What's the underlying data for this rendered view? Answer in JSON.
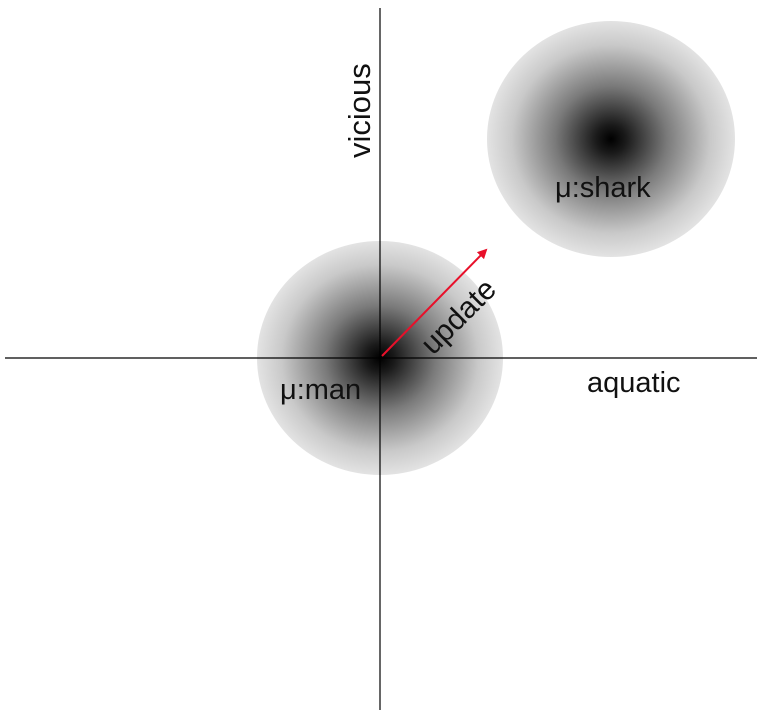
{
  "diagram": {
    "axes": {
      "horizontal_label": "aquatic",
      "vertical_label": "vicious"
    },
    "distributions": [
      {
        "id": "man",
        "label": "μ:man"
      },
      {
        "id": "shark",
        "label": "μ:shark"
      }
    ],
    "arrow": {
      "label": "update",
      "color": "#e8102a"
    },
    "colors": {
      "axis": "#000000",
      "blob_center": "#000000",
      "blob_edge": "#e3e3e3",
      "text": "#111111"
    }
  }
}
